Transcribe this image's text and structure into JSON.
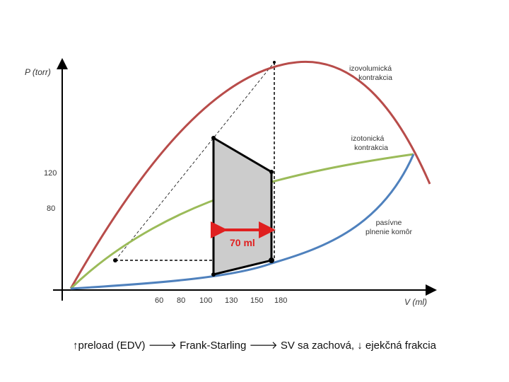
{
  "axes": {
    "y_label": "P (torr)",
    "x_label": "V (ml)",
    "y_ticks": [
      "120",
      "80"
    ],
    "x_ticks": [
      "60",
      "80",
      "100",
      "130",
      "150",
      "180"
    ]
  },
  "curves": {
    "isovolumic": {
      "label_line1": "izovolumická",
      "label_line2": "kontrakcia",
      "color": "#b84c4a"
    },
    "isotonic": {
      "label_line1": "izotonická",
      "label_line2": "kontrakcia",
      "color": "#9bbb59"
    },
    "passive": {
      "label_line1": "pasívne",
      "label_line2": "plnenie komôr",
      "color": "#4f81bd"
    }
  },
  "stroke_volume": {
    "label": "70 ml",
    "color": "#e02020"
  },
  "loop": {
    "fill": "#cccccc",
    "stroke": "#000000"
  },
  "caption": {
    "text": "↑preload (EDV) 🡒 Frank-Starling 🡒 SV sa zachová, ↓ ejekčná frakcia"
  }
}
